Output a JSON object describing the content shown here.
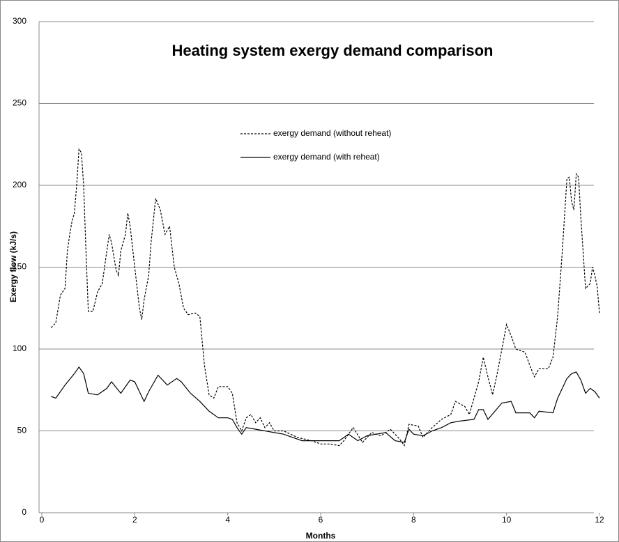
{
  "chart_data": {
    "type": "line",
    "title": "Heating system exergy demand comparison",
    "x_label": "Months",
    "y_label": "Exergy flow (kJ/s)",
    "xlim": [
      0,
      12
    ],
    "ylim": [
      0,
      300
    ],
    "xticks": [
      0,
      2,
      4,
      6,
      8,
      10,
      12
    ],
    "yticks": [
      0,
      50,
      100,
      150,
      200,
      250,
      300
    ],
    "grid": true,
    "legend": "top",
    "series": [
      {
        "name": "exergy demand (without reheat)",
        "color": "#000000",
        "dash": "dashed",
        "x": [
          0.2,
          0.3,
          0.4,
          0.5,
          0.55,
          0.6,
          0.65,
          0.7,
          0.75,
          0.8,
          0.85,
          0.9,
          0.95,
          1.0,
          1.1,
          1.2,
          1.3,
          1.4,
          1.45,
          1.5,
          1.6,
          1.65,
          1.7,
          1.8,
          1.85,
          1.9,
          2.0,
          2.1,
          2.15,
          2.2,
          2.3,
          2.35,
          2.45,
          2.55,
          2.65,
          2.75,
          2.85,
          2.95,
          3.05,
          3.15,
          3.3,
          3.4,
          3.5,
          3.6,
          3.7,
          3.8,
          4.0,
          4.1,
          4.2,
          4.3,
          4.4,
          4.5,
          4.6,
          4.7,
          4.8,
          4.9,
          5.0,
          5.2,
          5.5,
          5.8,
          6.0,
          6.2,
          6.4,
          6.5,
          6.7,
          6.9,
          7.1,
          7.3,
          7.5,
          7.7,
          7.8,
          7.9,
          8.1,
          8.2,
          8.4,
          8.6,
          8.8,
          8.9,
          9.1,
          9.2,
          9.4,
          9.5,
          9.6,
          9.7,
          9.8,
          9.9,
          10.0,
          10.1,
          10.2,
          10.4,
          10.5,
          10.6,
          10.7,
          10.9,
          11.0,
          11.1,
          11.2,
          11.3,
          11.35,
          11.4,
          11.45,
          11.5,
          11.55,
          11.6,
          11.7,
          11.8,
          11.85,
          11.9,
          11.95,
          12.0
        ],
        "values": [
          113,
          116,
          133,
          137,
          160,
          170,
          178,
          183,
          200,
          222,
          220,
          200,
          160,
          123,
          123,
          135,
          140,
          160,
          170,
          165,
          148,
          145,
          160,
          170,
          183,
          175,
          150,
          125,
          118,
          130,
          145,
          165,
          192,
          185,
          170,
          175,
          150,
          140,
          125,
          121,
          122,
          120,
          90,
          72,
          70,
          77,
          77,
          73,
          55,
          50,
          58,
          60,
          55,
          58,
          52,
          55,
          50,
          50,
          46,
          44,
          42,
          42,
          41,
          44,
          52,
          43,
          49,
          47,
          51,
          45,
          41,
          54,
          53,
          46,
          52,
          57,
          60,
          68,
          65,
          60,
          80,
          95,
          83,
          72,
          85,
          100,
          115,
          108,
          100,
          98,
          90,
          83,
          88,
          88,
          95,
          120,
          160,
          204,
          205,
          190,
          185,
          207,
          205,
          180,
          137,
          140,
          150,
          145,
          138,
          122
        ]
      },
      {
        "name": "exergy demand (with reheat)",
        "color": "#000000",
        "dash": "solid",
        "x": [
          0.2,
          0.3,
          0.5,
          0.7,
          0.8,
          0.9,
          1.0,
          1.2,
          1.4,
          1.5,
          1.7,
          1.9,
          2.0,
          2.2,
          2.3,
          2.5,
          2.7,
          2.9,
          3.0,
          3.2,
          3.4,
          3.6,
          3.8,
          4.0,
          4.1,
          4.2,
          4.3,
          4.4,
          4.6,
          4.8,
          5.0,
          5.2,
          5.4,
          5.6,
          6.0,
          6.4,
          6.6,
          6.8,
          7.0,
          7.2,
          7.4,
          7.6,
          7.8,
          7.9,
          8.0,
          8.2,
          8.4,
          8.6,
          8.8,
          9.0,
          9.3,
          9.4,
          9.5,
          9.6,
          9.9,
          10.1,
          10.2,
          10.5,
          10.6,
          10.7,
          11.0,
          11.1,
          11.3,
          11.4,
          11.5,
          11.6,
          11.7,
          11.8,
          11.9,
          12.0
        ],
        "values": [
          71,
          70,
          78,
          85,
          89,
          85,
          73,
          72,
          76,
          80,
          73,
          81,
          80,
          68,
          74,
          84,
          78,
          82,
          80,
          73,
          68,
          62,
          58,
          58,
          57,
          52,
          48,
          52,
          51,
          50,
          49,
          48,
          46,
          44,
          44,
          44,
          48,
          44,
          47,
          48,
          49,
          44,
          43,
          51,
          48,
          47,
          50,
          52,
          55,
          56,
          57,
          63,
          63,
          57,
          67,
          68,
          61,
          61,
          58,
          62,
          61,
          70,
          82,
          85,
          86,
          81,
          73,
          76,
          74,
          70
        ]
      }
    ]
  }
}
